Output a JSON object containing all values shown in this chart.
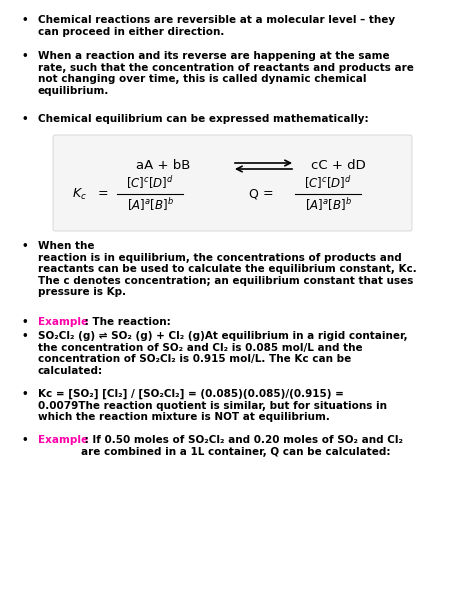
{
  "bg_color": "#ffffff",
  "text_color": "#000000",
  "example_color": "#ff00aa",
  "bullet1": "Chemical reactions are reversible at a molecular level – they\ncan proceed in either direction.",
  "bullet2": "When a reaction and its reverse are happening at the same\nrate, such that the concentration of reactants and products are\nnot changing over time, this is called dynamic chemical\nequilibrium.",
  "bullet3": "Chemical equilibrium can be expressed mathematically:",
  "bullet4": "When the\nreaction is in equilibrium, the concentrations of products and\nreactants can be used to calculate the equilibrium constant, Kc.\nThe c denotes concentration; an equilibrium constant that uses\npressure is Kp.",
  "bullet5_example": "Example",
  "bullet5_rest": " : The reaction:",
  "bullet6": "SO₂Cl₂ (g) ⇌ SO₂ (g) + Cl₂ (g)At equilibrium in a rigid container,\nthe concentration of SO₂ and Cl₂ is 0.085 mol/L and the\nconcentration of SO₂Cl₂ is 0.915 mol/L. The Kc can be\ncalculated:",
  "bullet7": "Kc = [SO₂] [Cl₂] / [SO₂Cl₂] = (0.085)(0.085)/(0.915) =\n0.0079The reaction quotient is similar, but for situations in\nwhich the reaction mixture is NOT at equilibrium.",
  "bullet8_example": "Example",
  "bullet8_rest": " : If 0.50 moles of SO₂Cl₂ and 0.20 moles of SO₂ and Cl₂\nare combined in a 1L container, Q can be calculated:"
}
